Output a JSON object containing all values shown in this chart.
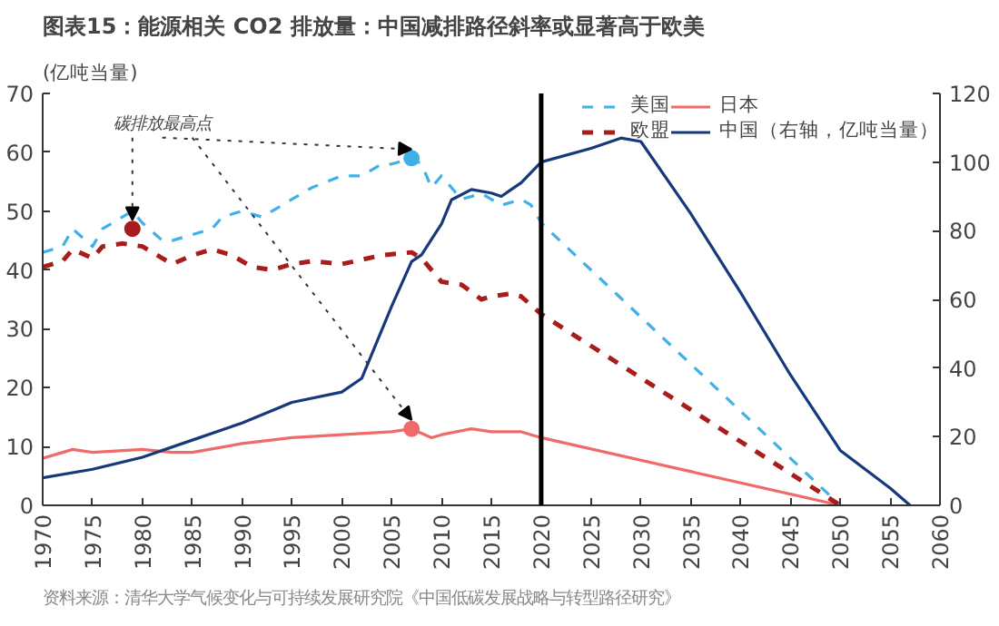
{
  "chart_data": {
    "type": "line",
    "title": "图表15：能源相关 CO2 排放量：中国减排路径斜率或显著高于欧美",
    "ylabel": "(亿吨当量)",
    "annotations": [
      {
        "text": "碳排放最高点",
        "x": 1979,
        "y": 47
      },
      "资料来源：清华大学气候变化与可持续发展研究院《中国低碳发展战略与转型路径研究》"
    ],
    "series": [
      {
        "name": "美国",
        "color": "#3fb0e8",
        "line_style": "dashed",
        "x": [
          1970,
          1972,
          1973,
          1975,
          1976,
          1978,
          1979,
          1980,
          1982,
          1983,
          1985,
          1987,
          1988,
          1990,
          1992,
          1995,
          1997,
          2000,
          2002,
          2004,
          2005,
          2007,
          2008,
          2009,
          2010,
          2012,
          2014,
          2016,
          2018,
          2019,
          2020,
          2050
        ],
        "values": [
          43,
          44,
          47,
          44,
          47,
          49,
          50,
          48,
          45,
          45,
          46,
          47,
          49,
          50,
          49,
          52,
          54,
          56,
          56,
          58,
          58,
          59,
          58,
          54,
          56,
          52,
          53,
          51,
          52,
          51,
          48,
          0
        ]
      },
      {
        "name": "日本",
        "color": "#f06a6a",
        "line_style": "solid",
        "x": [
          1970,
          1973,
          1975,
          1980,
          1983,
          1985,
          1990,
          1995,
          2000,
          2005,
          2007,
          2009,
          2010,
          2013,
          2015,
          2018,
          2020,
          2050
        ],
        "values": [
          8,
          9.5,
          9,
          9.5,
          9,
          9,
          10.5,
          11.5,
          12,
          12.5,
          13,
          11.5,
          12,
          13,
          12.5,
          12.5,
          11.5,
          0
        ]
      },
      {
        "name": "欧盟",
        "color": "#a81c1c",
        "line_style": "dashed",
        "x": [
          1970,
          1972,
          1973,
          1975,
          1976,
          1978,
          1980,
          1982,
          1983,
          1985,
          1987,
          1989,
          1991,
          1993,
          1995,
          1997,
          2000,
          2004,
          2007,
          2008,
          2010,
          2012,
          2014,
          2015,
          2017,
          2018,
          2020,
          2050
        ],
        "values": [
          40.5,
          41.5,
          43.5,
          42,
          44,
          44.5,
          44,
          42,
          41,
          42.5,
          43.5,
          42.5,
          40.5,
          40,
          41,
          41.5,
          41,
          42.5,
          43,
          42,
          38,
          37.5,
          35,
          35.5,
          36,
          35.5,
          32.5,
          0
        ]
      },
      {
        "name": "中国（右轴，亿吨当量）",
        "color": "#15397a",
        "line_style": "solid",
        "axis": "y2",
        "x": [
          1970,
          1975,
          1980,
          1985,
          1990,
          1995,
          2000,
          2002,
          2005,
          2007,
          2008,
          2010,
          2011,
          2013,
          2015,
          2016,
          2017,
          2018,
          2020,
          2025,
          2028,
          2030,
          2035,
          2040,
          2045,
          2050,
          2055,
          2057
        ],
        "values": [
          8,
          10.5,
          14,
          19,
          24,
          30,
          33,
          37,
          58,
          71,
          73,
          82,
          89,
          92,
          91,
          90,
          92,
          94,
          100,
          104,
          107,
          106,
          85,
          62,
          38,
          16,
          5,
          0
        ]
      },
      {
        "type": "scatter",
        "marker": "circle",
        "color": "#a81c1c",
        "x": [
          1979
        ],
        "values": [
          47
        ]
      },
      {
        "type": "scatter",
        "marker": "circle",
        "color": "#3fb0e8",
        "x": [
          2007
        ],
        "values": [
          59
        ]
      },
      {
        "type": "scatter",
        "marker": "circle",
        "color": "#f06a6a",
        "x": [
          2007
        ],
        "values": [
          13
        ]
      }
    ],
    "xlim": [
      1970,
      2060
    ],
    "xticks": [
      1970,
      1975,
      1980,
      1985,
      1990,
      1995,
      2000,
      2005,
      2010,
      2015,
      2020,
      2025,
      2030,
      2035,
      2040,
      2045,
      2050,
      2055,
      2060
    ],
    "ylim": [
      0,
      70
    ],
    "yticks": [
      0,
      10,
      20,
      30,
      40,
      50,
      60,
      70
    ],
    "y2lim": [
      0,
      120
    ],
    "y2ticks": [
      0,
      20,
      40,
      60,
      80,
      100,
      120
    ],
    "ref_lines": [
      {
        "axis": "x",
        "value": 2020,
        "color": "#000000"
      }
    ],
    "grid": false,
    "legend": "top right"
  }
}
